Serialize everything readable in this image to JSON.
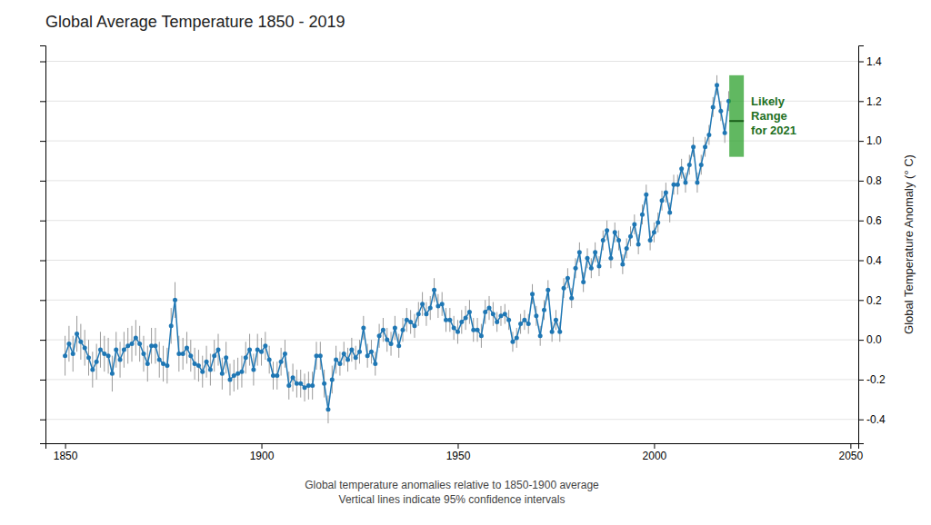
{
  "chart_data": {
    "type": "line",
    "title": "Global Average Temperature 1850 - 2019",
    "y_label": "Global Temperature Anomaly (° C)",
    "annotations": [
      "Global temperature anomalies relative to 1850-1900 average",
      "Vertical lines indicate 95% confidence intervals"
    ],
    "xlim": [
      1845,
      2052
    ],
    "xticks": [
      1850,
      1900,
      1950,
      2000,
      2050
    ],
    "ylim": [
      -0.52,
      1.48
    ],
    "yticks": [
      -0.4,
      -0.2,
      {
        "value": 0.0,
        "label": "0.0"
      },
      0.2,
      0.4,
      0.6,
      0.8,
      {
        "value": 1.0,
        "label": "1.0"
      },
      1.2,
      1.4
    ],
    "grid": "y",
    "x": [
      1850,
      1851,
      1852,
      1853,
      1854,
      1855,
      1856,
      1857,
      1858,
      1859,
      1860,
      1861,
      1862,
      1863,
      1864,
      1865,
      1866,
      1867,
      1868,
      1869,
      1870,
      1871,
      1872,
      1873,
      1874,
      1875,
      1876,
      1877,
      1878,
      1879,
      1880,
      1881,
      1882,
      1883,
      1884,
      1885,
      1886,
      1887,
      1888,
      1889,
      1890,
      1891,
      1892,
      1893,
      1894,
      1895,
      1896,
      1897,
      1898,
      1899,
      1900,
      1901,
      1902,
      1903,
      1904,
      1905,
      1906,
      1907,
      1908,
      1909,
      1910,
      1911,
      1912,
      1913,
      1914,
      1915,
      1916,
      1917,
      1918,
      1919,
      1920,
      1921,
      1922,
      1923,
      1924,
      1925,
      1926,
      1927,
      1928,
      1929,
      1930,
      1931,
      1932,
      1933,
      1934,
      1935,
      1936,
      1937,
      1938,
      1939,
      1940,
      1941,
      1942,
      1943,
      1944,
      1945,
      1946,
      1947,
      1948,
      1949,
      1950,
      1951,
      1952,
      1953,
      1954,
      1955,
      1956,
      1957,
      1958,
      1959,
      1960,
      1961,
      1962,
      1963,
      1964,
      1965,
      1966,
      1967,
      1968,
      1969,
      1970,
      1971,
      1972,
      1973,
      1974,
      1975,
      1976,
      1977,
      1978,
      1979,
      1980,
      1981,
      1982,
      1983,
      1984,
      1985,
      1986,
      1987,
      1988,
      1989,
      1990,
      1991,
      1992,
      1993,
      1994,
      1995,
      1996,
      1997,
      1998,
      1999,
      2000,
      2001,
      2002,
      2003,
      2004,
      2005,
      2006,
      2007,
      2008,
      2009,
      2010,
      2011,
      2012,
      2013,
      2014,
      2015,
      2016,
      2017,
      2018,
      2019
    ],
    "series": [
      {
        "marker": "circle",
        "values": [
          -0.08,
          -0.02,
          -0.07,
          0.03,
          -0.01,
          -0.04,
          -0.09,
          -0.15,
          -0.11,
          -0.05,
          -0.07,
          -0.08,
          -0.17,
          -0.05,
          -0.1,
          -0.05,
          -0.03,
          -0.02,
          0.01,
          -0.02,
          -0.07,
          -0.12,
          -0.03,
          -0.03,
          -0.1,
          -0.12,
          -0.13,
          0.07,
          0.2,
          -0.07,
          -0.07,
          -0.04,
          -0.08,
          -0.12,
          -0.13,
          -0.16,
          -0.11,
          -0.15,
          -0.08,
          -0.05,
          -0.17,
          -0.09,
          -0.2,
          -0.18,
          -0.17,
          -0.16,
          -0.09,
          -0.05,
          -0.15,
          -0.05,
          -0.06,
          -0.03,
          -0.1,
          -0.18,
          -0.18,
          -0.11,
          -0.07,
          -0.23,
          -0.19,
          -0.22,
          -0.22,
          -0.24,
          -0.23,
          -0.23,
          -0.08,
          -0.08,
          -0.22,
          -0.35,
          -0.2,
          -0.1,
          -0.12,
          -0.07,
          -0.1,
          -0.05,
          -0.09,
          -0.06,
          0.06,
          -0.08,
          -0.06,
          -0.12,
          0.02,
          0.05,
          0.0,
          -0.02,
          0.06,
          -0.03,
          0.05,
          0.1,
          0.09,
          0.07,
          0.13,
          0.18,
          0.13,
          0.16,
          0.25,
          0.17,
          0.18,
          0.1,
          0.1,
          0.06,
          0.04,
          0.09,
          0.11,
          0.14,
          0.05,
          0.05,
          0.02,
          0.14,
          0.16,
          0.13,
          0.09,
          0.12,
          0.13,
          0.1,
          -0.01,
          0.01,
          0.08,
          0.1,
          0.08,
          0.23,
          0.12,
          0.02,
          0.15,
          0.25,
          0.04,
          0.1,
          0.04,
          0.26,
          0.31,
          0.21,
          0.36,
          0.44,
          0.29,
          0.41,
          0.36,
          0.44,
          0.37,
          0.5,
          0.55,
          0.41,
          0.54,
          0.5,
          0.38,
          0.46,
          0.52,
          0.58,
          0.48,
          0.63,
          0.73,
          0.5,
          0.54,
          0.59,
          0.7,
          0.74,
          0.64,
          0.78,
          0.78,
          0.86,
          0.79,
          0.88,
          0.97,
          0.79,
          0.88,
          0.97,
          1.03,
          1.17,
          1.28,
          1.15,
          1.04,
          1.2
        ],
        "errors": [
          0.1,
          0.09,
          0.09,
          0.09,
          0.09,
          0.09,
          0.09,
          0.09,
          0.09,
          0.09,
          0.09,
          0.09,
          0.09,
          0.09,
          0.09,
          0.09,
          0.09,
          0.09,
          0.09,
          0.09,
          0.09,
          0.09,
          0.09,
          0.09,
          0.09,
          0.09,
          0.09,
          0.09,
          0.09,
          0.09,
          0.08,
          0.08,
          0.08,
          0.08,
          0.08,
          0.08,
          0.08,
          0.08,
          0.08,
          0.08,
          0.08,
          0.08,
          0.08,
          0.08,
          0.08,
          0.08,
          0.08,
          0.08,
          0.08,
          0.08,
          0.07,
          0.07,
          0.07,
          0.07,
          0.07,
          0.07,
          0.07,
          0.07,
          0.07,
          0.07,
          0.07,
          0.07,
          0.07,
          0.07,
          0.07,
          0.07,
          0.07,
          0.07,
          0.07,
          0.07,
          0.06,
          0.06,
          0.06,
          0.06,
          0.06,
          0.06,
          0.06,
          0.06,
          0.06,
          0.06,
          0.06,
          0.06,
          0.06,
          0.06,
          0.06,
          0.06,
          0.06,
          0.06,
          0.06,
          0.06,
          0.06,
          0.06,
          0.06,
          0.06,
          0.06,
          0.06,
          0.06,
          0.06,
          0.06,
          0.06,
          0.06,
          0.06,
          0.06,
          0.06,
          0.06,
          0.06,
          0.06,
          0.06,
          0.06,
          0.06,
          0.05,
          0.05,
          0.05,
          0.05,
          0.05,
          0.05,
          0.05,
          0.05,
          0.05,
          0.05,
          0.05,
          0.05,
          0.05,
          0.05,
          0.05,
          0.05,
          0.05,
          0.05,
          0.05,
          0.05,
          0.05,
          0.05,
          0.05,
          0.05,
          0.05,
          0.05,
          0.05,
          0.05,
          0.05,
          0.05,
          0.05,
          0.05,
          0.05,
          0.05,
          0.05,
          0.05,
          0.05,
          0.05,
          0.05,
          0.05,
          0.05,
          0.05,
          0.05,
          0.05,
          0.05,
          0.05,
          0.05,
          0.05,
          0.05,
          0.05,
          0.05,
          0.05,
          0.05,
          0.05,
          0.05,
          0.05,
          0.05,
          0.05,
          0.05,
          0.05
        ]
      }
    ],
    "likely_range": {
      "label": [
        "Likely",
        "Range",
        "for 2021"
      ],
      "x": 2021,
      "low": 0.92,
      "high": 1.33,
      "central": 1.1
    }
  }
}
